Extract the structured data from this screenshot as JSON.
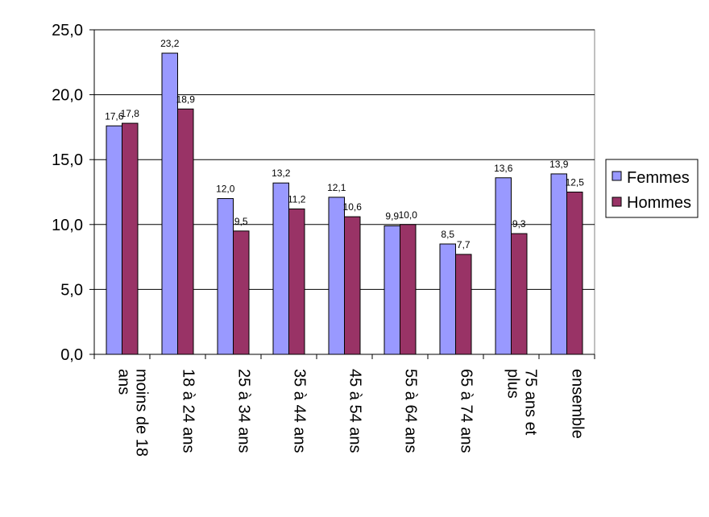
{
  "chart_data": {
    "type": "bar",
    "categories": [
      [
        "moins de 18",
        "ans"
      ],
      [
        "18 à 24 ans"
      ],
      [
        "25 à 34 ans"
      ],
      [
        "35 à 44 ans"
      ],
      [
        "45 à 54 ans"
      ],
      [
        "55 à 64 ans"
      ],
      [
        "65 à 74 ans"
      ],
      [
        "75 ans et",
        "plus"
      ],
      [
        "ensemble"
      ]
    ],
    "series": [
      {
        "name": "Femmes",
        "color": "#9999ff",
        "values": [
          17.6,
          23.2,
          12.0,
          13.2,
          12.1,
          9.9,
          8.5,
          13.6,
          13.9
        ],
        "labels": [
          "17,6",
          "23,2",
          "12,0",
          "13,2",
          "12,1",
          "9,9",
          "8,5",
          "13,6",
          "13,9"
        ]
      },
      {
        "name": "Hommes",
        "color": "#993366",
        "values": [
          17.8,
          18.9,
          9.5,
          11.2,
          10.6,
          10.0,
          7.7,
          9.3,
          12.5
        ],
        "labels": [
          "17,8",
          "18,9",
          "9,5",
          "11,2",
          "10,6",
          "10,0",
          "7,7",
          "9,3",
          "12,5"
        ]
      }
    ],
    "ylim": [
      0,
      25
    ],
    "yticks": [
      0,
      5,
      10,
      15,
      20,
      25
    ],
    "ytick_labels": [
      "0,0",
      "5,0",
      "10,0",
      "15,0",
      "20,0",
      "25,0"
    ],
    "grid": true,
    "legend_position": "right",
    "title": "",
    "xlabel": "",
    "ylabel": ""
  }
}
